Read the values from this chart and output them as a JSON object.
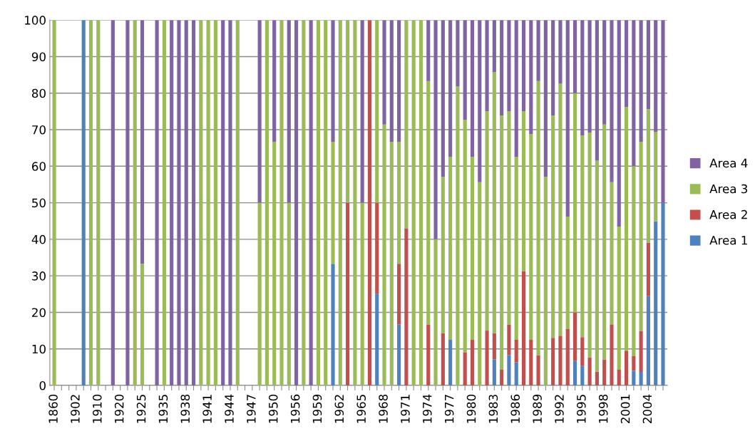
{
  "chart_data": {
    "type": "bar",
    "stacked": true,
    "categories": [
      "1860",
      null,
      null,
      "1902",
      null,
      null,
      "1910",
      null,
      null,
      "1920",
      null,
      null,
      "1925",
      null,
      null,
      "1935",
      null,
      null,
      "1938",
      null,
      null,
      "1941",
      null,
      null,
      "1944",
      null,
      null,
      "1947",
      null,
      null,
      "1950",
      null,
      null,
      "1956",
      null,
      null,
      "1959",
      null,
      null,
      "1962",
      null,
      null,
      "1965",
      null,
      null,
      "1968",
      null,
      null,
      "1971",
      null,
      null,
      "1974",
      null,
      null,
      "1977",
      null,
      null,
      "1980",
      null,
      null,
      "1983",
      null,
      null,
      "1986",
      null,
      null,
      "1989",
      null,
      null,
      "1992",
      null,
      null,
      "1995",
      null,
      null,
      "1998",
      null,
      null,
      "2001",
      null,
      null,
      "2004",
      null,
      null
    ],
    "series": [
      {
        "name": "Area 1",
        "color": "#4f81bd",
        "values": [
          null,
          null,
          null,
          null,
          100,
          null,
          null,
          null,
          null,
          null,
          null,
          null,
          null,
          null,
          null,
          null,
          null,
          null,
          null,
          null,
          null,
          null,
          null,
          null,
          null,
          null,
          null,
          null,
          null,
          null,
          null,
          null,
          null,
          null,
          null,
          null,
          null,
          null,
          33.3,
          null,
          null,
          null,
          null,
          null,
          25,
          null,
          null,
          16.7,
          null,
          null,
          null,
          null,
          null,
          null,
          12.5,
          null,
          null,
          null,
          null,
          null,
          7.1,
          null,
          8.3,
          6.3,
          null,
          null,
          null,
          null,
          null,
          null,
          null,
          6.7,
          5.3,
          null,
          null,
          null,
          null,
          null,
          null,
          4,
          3.7,
          24.4,
          44.9,
          50
        ]
      },
      {
        "name": "Area 2",
        "color": "#c0504d",
        "values": [
          null,
          null,
          null,
          null,
          null,
          null,
          null,
          null,
          null,
          null,
          null,
          null,
          null,
          null,
          null,
          null,
          null,
          null,
          null,
          null,
          null,
          null,
          null,
          null,
          null,
          null,
          null,
          null,
          null,
          null,
          null,
          null,
          null,
          null,
          null,
          null,
          null,
          null,
          null,
          null,
          50,
          null,
          null,
          100,
          25,
          null,
          null,
          16.6,
          42.9,
          null,
          null,
          16.7,
          null,
          14.3,
          null,
          null,
          9.1,
          12.5,
          null,
          15,
          7.2,
          4.3,
          8.4,
          6.2,
          31.3,
          12.5,
          8.3,
          null,
          13,
          13.6,
          15.4,
          13.3,
          7.9,
          7.7,
          3.8,
          7.1,
          16.7,
          4.3,
          9.5,
          4,
          11.1,
          14.7,
          null,
          null
        ]
      },
      {
        "name": "Area 3",
        "color": "#9bbb59",
        "values": [
          100,
          null,
          null,
          null,
          null,
          100,
          100,
          null,
          null,
          null,
          null,
          100,
          33.3,
          null,
          null,
          100,
          null,
          null,
          null,
          null,
          100,
          100,
          100,
          null,
          null,
          100,
          null,
          null,
          50,
          100,
          66.7,
          100,
          50,
          null,
          100,
          null,
          100,
          100,
          33.4,
          100,
          50,
          100,
          50,
          null,
          50,
          71.4,
          66.7,
          33.4,
          57.1,
          100,
          100,
          66.6,
          40,
          42.8,
          50,
          81.8,
          63.6,
          50,
          55.6,
          60,
          71.4,
          69.6,
          58.3,
          50,
          43.7,
          56.3,
          75,
          57.1,
          60.9,
          69,
          30.8,
          60,
          55.2,
          61.5,
          57.7,
          64.3,
          38.9,
          39.2,
          66.7,
          52,
          51.9,
          36.5,
          24.5,
          null
        ]
      },
      {
        "name": "Area 4",
        "color": "#8064a2",
        "values": [
          null,
          null,
          null,
          null,
          null,
          null,
          null,
          null,
          100,
          null,
          100,
          null,
          66.7,
          null,
          100,
          null,
          100,
          100,
          100,
          100,
          null,
          null,
          null,
          100,
          100,
          null,
          null,
          null,
          50,
          null,
          33.3,
          null,
          50,
          100,
          null,
          100,
          null,
          null,
          33.3,
          null,
          null,
          null,
          50,
          null,
          null,
          28.6,
          33.3,
          33.3,
          null,
          null,
          null,
          16.7,
          60,
          42.9,
          37.5,
          18.2,
          27.3,
          37.5,
          44.4,
          25,
          14.3,
          26.1,
          25,
          37.5,
          25,
          31.2,
          16.7,
          42.9,
          26.1,
          17.4,
          53.8,
          20,
          31.6,
          30.8,
          38.5,
          28.6,
          44.4,
          56.5,
          23.8,
          40,
          33.3,
          24.4,
          30.6,
          50
        ]
      }
    ],
    "ylim": [
      0,
      100
    ],
    "yticks": [
      0,
      10,
      20,
      30,
      40,
      50,
      60,
      70,
      80,
      90,
      100
    ],
    "grid": "y",
    "legend": "right"
  }
}
